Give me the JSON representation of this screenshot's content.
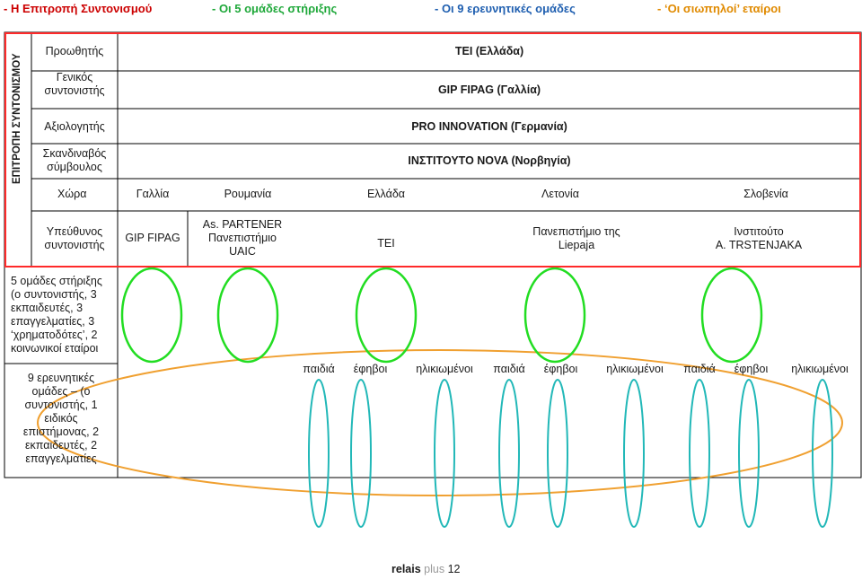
{
  "legend": {
    "item1": "- Η Επιτροπή Συντονισμού",
    "item2": "- Οι 5 ομάδες στήριξης",
    "item3": "- Οι 9 ερευνητικές ομάδες",
    "item4_dash": "- ",
    "item4_rest": "‘Οι σιωπηλοί’ εταίροι",
    "item1_color": "#cc0000",
    "item2_color": "#1fa83a",
    "item3_color": "#1f5fb0",
    "item4_color": "#e08a00"
  },
  "committee_label": "ΕΠΙΤΡΟΠΗ ΣΥΝΤΟΝΙΣΜΟΥ",
  "roles": {
    "promoter": {
      "label": "Προωθητής",
      "value": "ΤΕΙ (Ελλάδα)"
    },
    "general_coordinator": {
      "label_line1": "Γενικός",
      "label_line2": "συντονιστής",
      "value": "GIP FIPAG (Γαλλία)"
    },
    "evaluator": {
      "label": "Αξιολογητής",
      "value": "PRO INNOVATION (Γερμανία)"
    },
    "scandinavian_advisor": {
      "label_line1": "Σκανδιναβός",
      "label_line2": "σύμβουλος",
      "value": "ΙΝΣΤΙΤΟΥΤΟ NOVA (Νορβηγία)"
    }
  },
  "countries": {
    "label": "Χώρα",
    "items": [
      "Γαλλία",
      "Ρουμανία",
      "Ελλάδα",
      "Λετονία",
      "Σλοβενία"
    ]
  },
  "coordinators": {
    "label_line1": "Υπεύθυνος",
    "label_line2": "συντονιστής",
    "france": "GIP FIPAG",
    "romania_line1": "As. PARTENER",
    "romania_line2": "Πανεπιστήμιο",
    "romania_line3": "UAIC",
    "greece": "ΤΕΙ",
    "latvia_line1": "Πανεπιστήμιο της",
    "latvia_line2": "Liepaja",
    "slovenia_line1": "Ινστιτούτο",
    "slovenia_line2": "A. TRSTENJAKA"
  },
  "support_groups": {
    "line1": "5 ομάδες στήριξης",
    "line2": "(ο συντονιστής, 3",
    "line3": "εκπαιδευτές, 3",
    "line4": "επαγγελματίες, 3",
    "line5": "‘χρηματοδότες’, 2",
    "line6": "κοινωνικοί εταίροι"
  },
  "research_groups": {
    "line1": "9 ερευνητικές",
    "line2": "ομάδες – (ο",
    "line3": "συντονιστής, 1",
    "line4": "ειδικός",
    "line5": "επιστήμονας, 2",
    "line6": "εκπαιδευτές, 2",
    "line7": "επαγγελματίες"
  },
  "age_groups": [
    "παιδιά",
    "έφηβοι",
    "ηλικιωμένοι",
    "παιδιά",
    "έφηβοι",
    "ηλικιωμένοι",
    "παιδιά",
    "έφηβοι",
    "ηλικιωμένοι"
  ],
  "footer": {
    "brand": "relais",
    "plus": "plus",
    "page": "12"
  }
}
